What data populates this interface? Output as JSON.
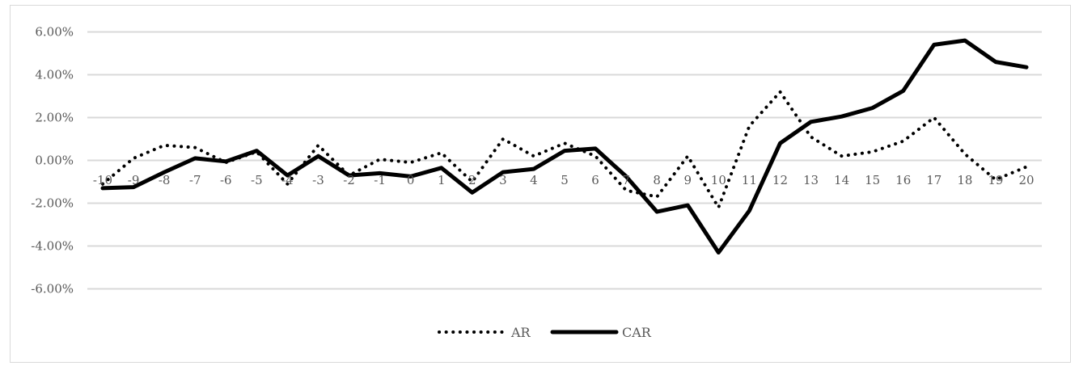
{
  "chart_data": {
    "type": "line",
    "x": [
      -10,
      -9,
      -8,
      -7,
      -6,
      -5,
      -4,
      -3,
      -2,
      -1,
      0,
      1,
      2,
      3,
      4,
      5,
      6,
      7,
      8,
      9,
      10,
      11,
      12,
      13,
      14,
      15,
      16,
      17,
      18,
      19,
      20
    ],
    "x_tick_labels": [
      "-10",
      "-9",
      "-8",
      "-7",
      "-6",
      "-5",
      "-4",
      "-3",
      "-2",
      "-1",
      "0",
      "1",
      "2",
      "3",
      "4",
      "5",
      "6",
      "7",
      "8",
      "9",
      "10",
      "11",
      "12",
      "13",
      "14",
      "15",
      "16",
      "17",
      "18",
      "19",
      "20"
    ],
    "y_tick_labels": [
      "6.00%",
      "4.00%",
      "2.00%",
      "0.00%",
      "-2.00%",
      "-4.00%",
      "-6.00%"
    ],
    "ylim": [
      -6,
      6
    ],
    "y_unit": "percent",
    "grid": "horizontal",
    "legend_position": "bottom",
    "title": "",
    "xlabel": "",
    "ylabel": "",
    "series": [
      {
        "name": "AR",
        "style": "dotted",
        "color": "#000000",
        "values": [
          -1.1,
          0.1,
          0.7,
          0.6,
          -0.1,
          0.4,
          -1.1,
          0.7,
          -0.7,
          0.05,
          -0.1,
          0.35,
          -1.0,
          1.0,
          0.2,
          0.8,
          0.2,
          -1.4,
          -1.7,
          0.2,
          -2.2,
          1.6,
          3.2,
          1.1,
          0.2,
          0.4,
          0.9,
          2.0,
          0.3,
          -0.9,
          -0.3
        ]
      },
      {
        "name": "CAR",
        "style": "solid",
        "color": "#000000",
        "values": [
          -1.3,
          -1.25,
          -0.55,
          0.1,
          -0.05,
          0.45,
          -0.7,
          0.2,
          -0.7,
          -0.6,
          -0.75,
          -0.35,
          -1.5,
          -0.55,
          -0.4,
          0.45,
          0.55,
          -0.75,
          -2.4,
          -2.1,
          -4.3,
          -2.35,
          0.8,
          1.8,
          2.05,
          2.45,
          3.25,
          5.4,
          5.6,
          4.6,
          4.35
        ]
      }
    ]
  },
  "colors": {
    "grid": "#d9d9d9",
    "text": "#595959",
    "line": "#000000"
  }
}
